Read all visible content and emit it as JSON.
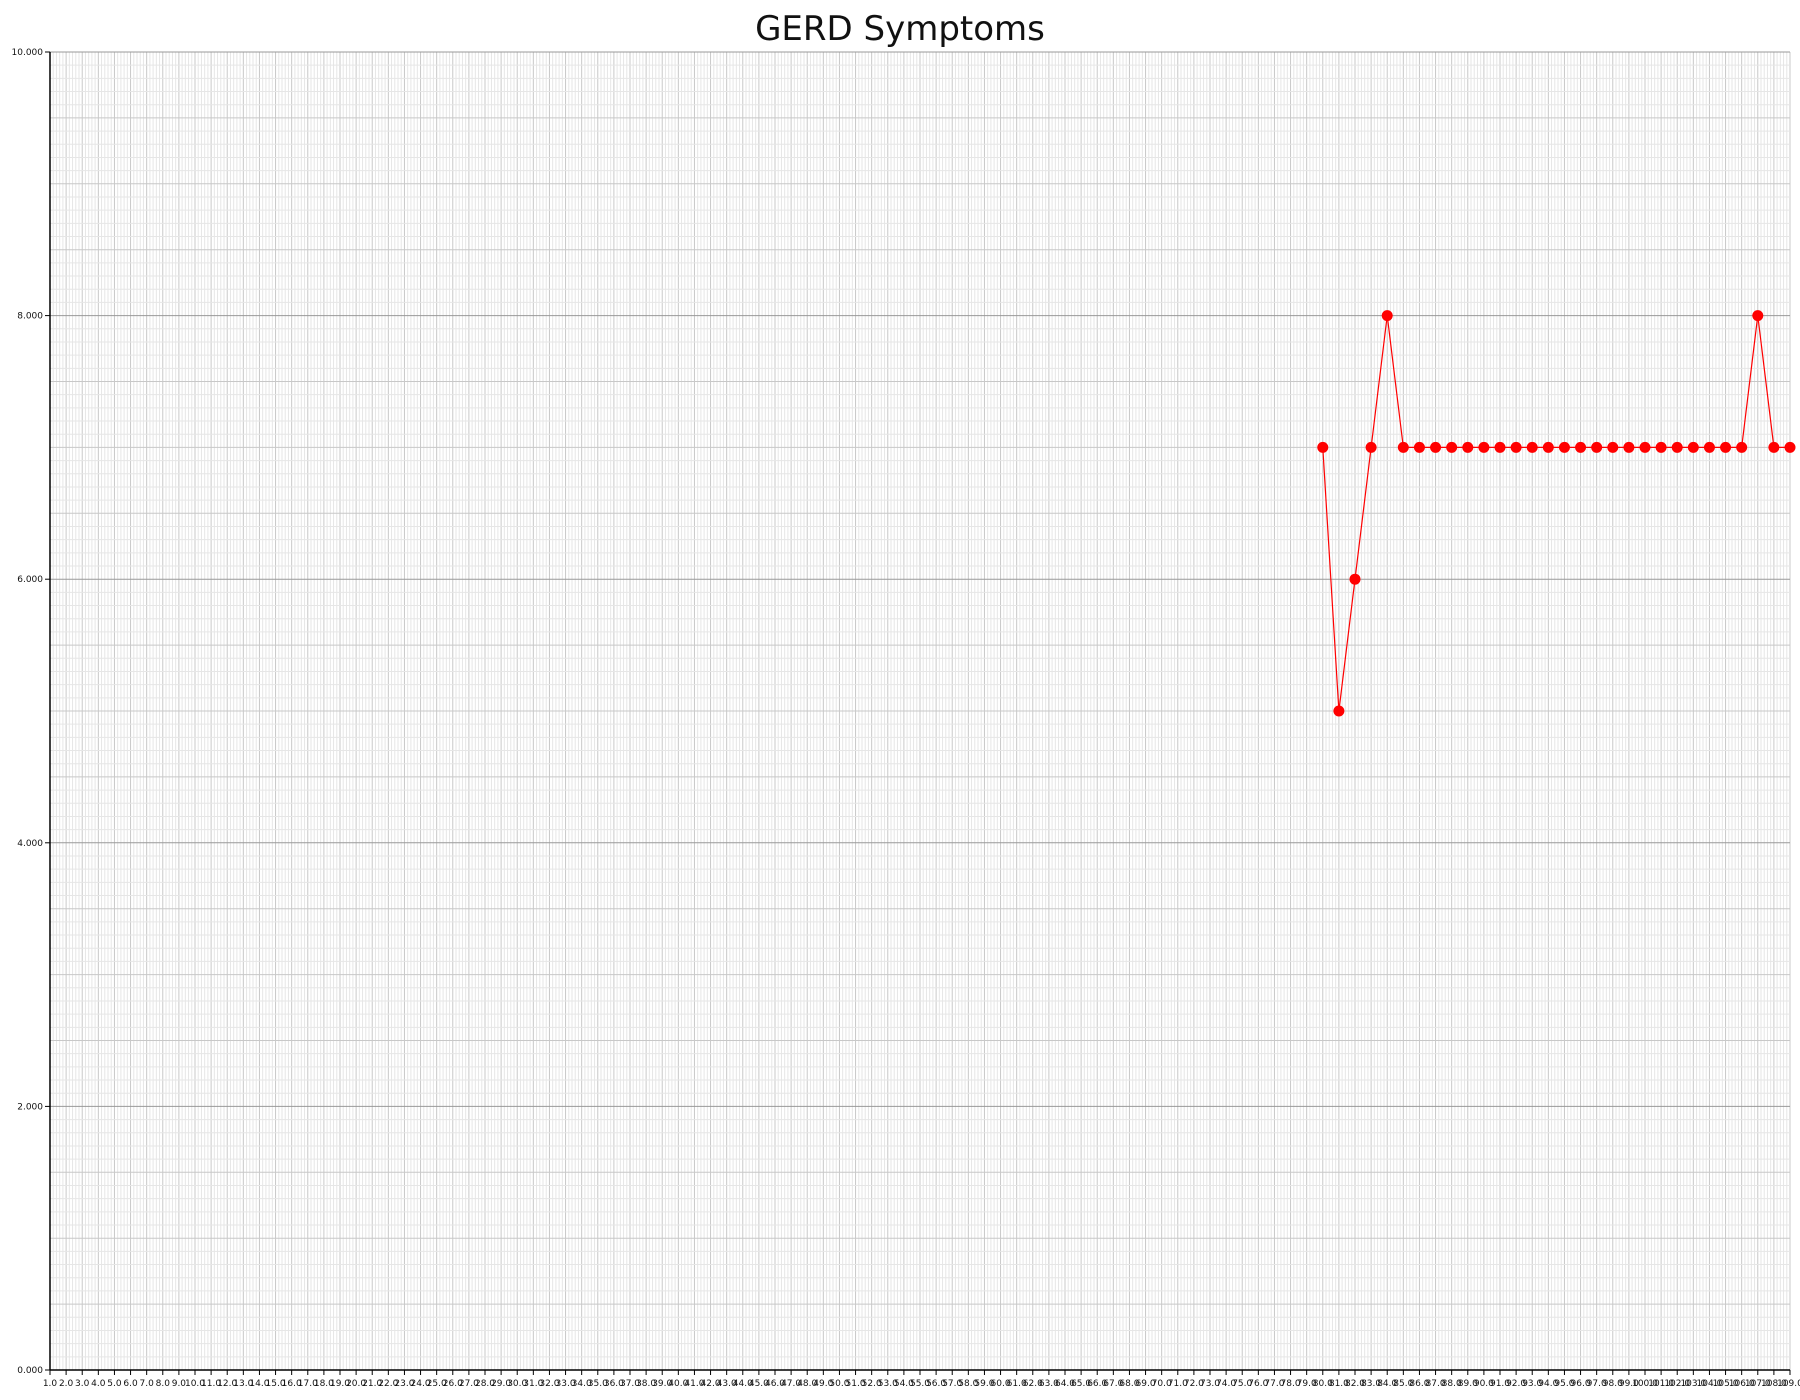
{
  "chart_data": {
    "type": "line",
    "title": "GERD Symptoms",
    "xlabel": "",
    "ylabel": "",
    "xlim": [
      1,
      109
    ],
    "ylim": [
      0,
      10
    ],
    "y_ticks": [
      0,
      2,
      4,
      6,
      8,
      10
    ],
    "y_tick_labels": [
      "0.000",
      "2.000",
      "4.000",
      "6.000",
      "8.000",
      "10.000"
    ],
    "x_tick_labels": [
      "1.0",
      "2.0",
      "3.0",
      "4.0",
      "5.0",
      "6.0",
      "7.0",
      "8.0",
      "9.0",
      "10.0",
      "11.0",
      "12.0",
      "13.0",
      "14.0",
      "15.0",
      "16.0",
      "17.0",
      "18.0",
      "19.0",
      "20.0",
      "21.0",
      "22.0",
      "23.0",
      "24.0",
      "25.0",
      "26.0",
      "27.0",
      "28.0",
      "29.0",
      "30.0",
      "31.0",
      "32.0",
      "33.0",
      "34.0",
      "35.0",
      "36.0",
      "37.0",
      "38.0",
      "39.0",
      "40.0",
      "41.0",
      "42.0",
      "43.0",
      "44.0",
      "45.0",
      "46.0",
      "47.0",
      "48.0",
      "49.0",
      "50.0",
      "51.0",
      "52.0",
      "53.0",
      "54.0",
      "55.0",
      "56.0",
      "57.0",
      "58.0",
      "59.0",
      "60.0",
      "61.0",
      "62.0",
      "63.0",
      "64.0",
      "65.0",
      "66.0",
      "67.0",
      "68.0",
      "69.0",
      "70.0",
      "71.0",
      "72.0",
      "73.0",
      "74.0",
      "75.0",
      "76.0",
      "77.0",
      "78.0",
      "79.0",
      "80.0",
      "81.0",
      "82.0",
      "83.0",
      "84.0",
      "85.0",
      "86.0",
      "87.0",
      "88.0",
      "89.0",
      "90.0",
      "91.0",
      "92.0",
      "93.0",
      "94.0",
      "95.0",
      "96.0",
      "97.0",
      "98.0",
      "99.0",
      "100.0",
      "101.0",
      "102.0",
      "103.0",
      "104.0",
      "105.0",
      "106.0",
      "107.0",
      "108.0",
      "109.0"
    ],
    "grid": true,
    "legend": "none",
    "series": [
      {
        "color": "#ff0000",
        "x": [
          80,
          81,
          82,
          83,
          84,
          85,
          86,
          87,
          88,
          89,
          90,
          91,
          92,
          93,
          94,
          95,
          96,
          97,
          98,
          99,
          100,
          101,
          102,
          103,
          104,
          105,
          106,
          107,
          108,
          109
        ],
        "values": [
          7,
          5,
          6,
          7,
          8,
          7,
          7,
          7,
          7,
          7,
          7,
          7,
          7,
          7,
          7,
          7,
          7,
          7,
          7,
          7,
          7,
          7,
          7,
          7,
          7,
          7,
          7,
          8,
          7,
          7
        ]
      }
    ]
  }
}
